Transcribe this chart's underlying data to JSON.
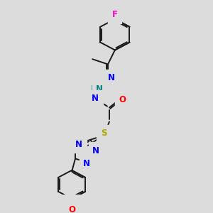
{
  "background_color": "#dcdcdc",
  "bond_color": "#1a1a1a",
  "atom_colors": {
    "F": "#ff00cc",
    "N": "#0000ff",
    "NH": "#008080",
    "O": "#ff0000",
    "S": "#aaaa00",
    "C": "#1a1a1a"
  },
  "figsize": [
    3.0,
    3.0
  ],
  "dpi": 100,
  "lw": 1.4,
  "fs": 8.5
}
